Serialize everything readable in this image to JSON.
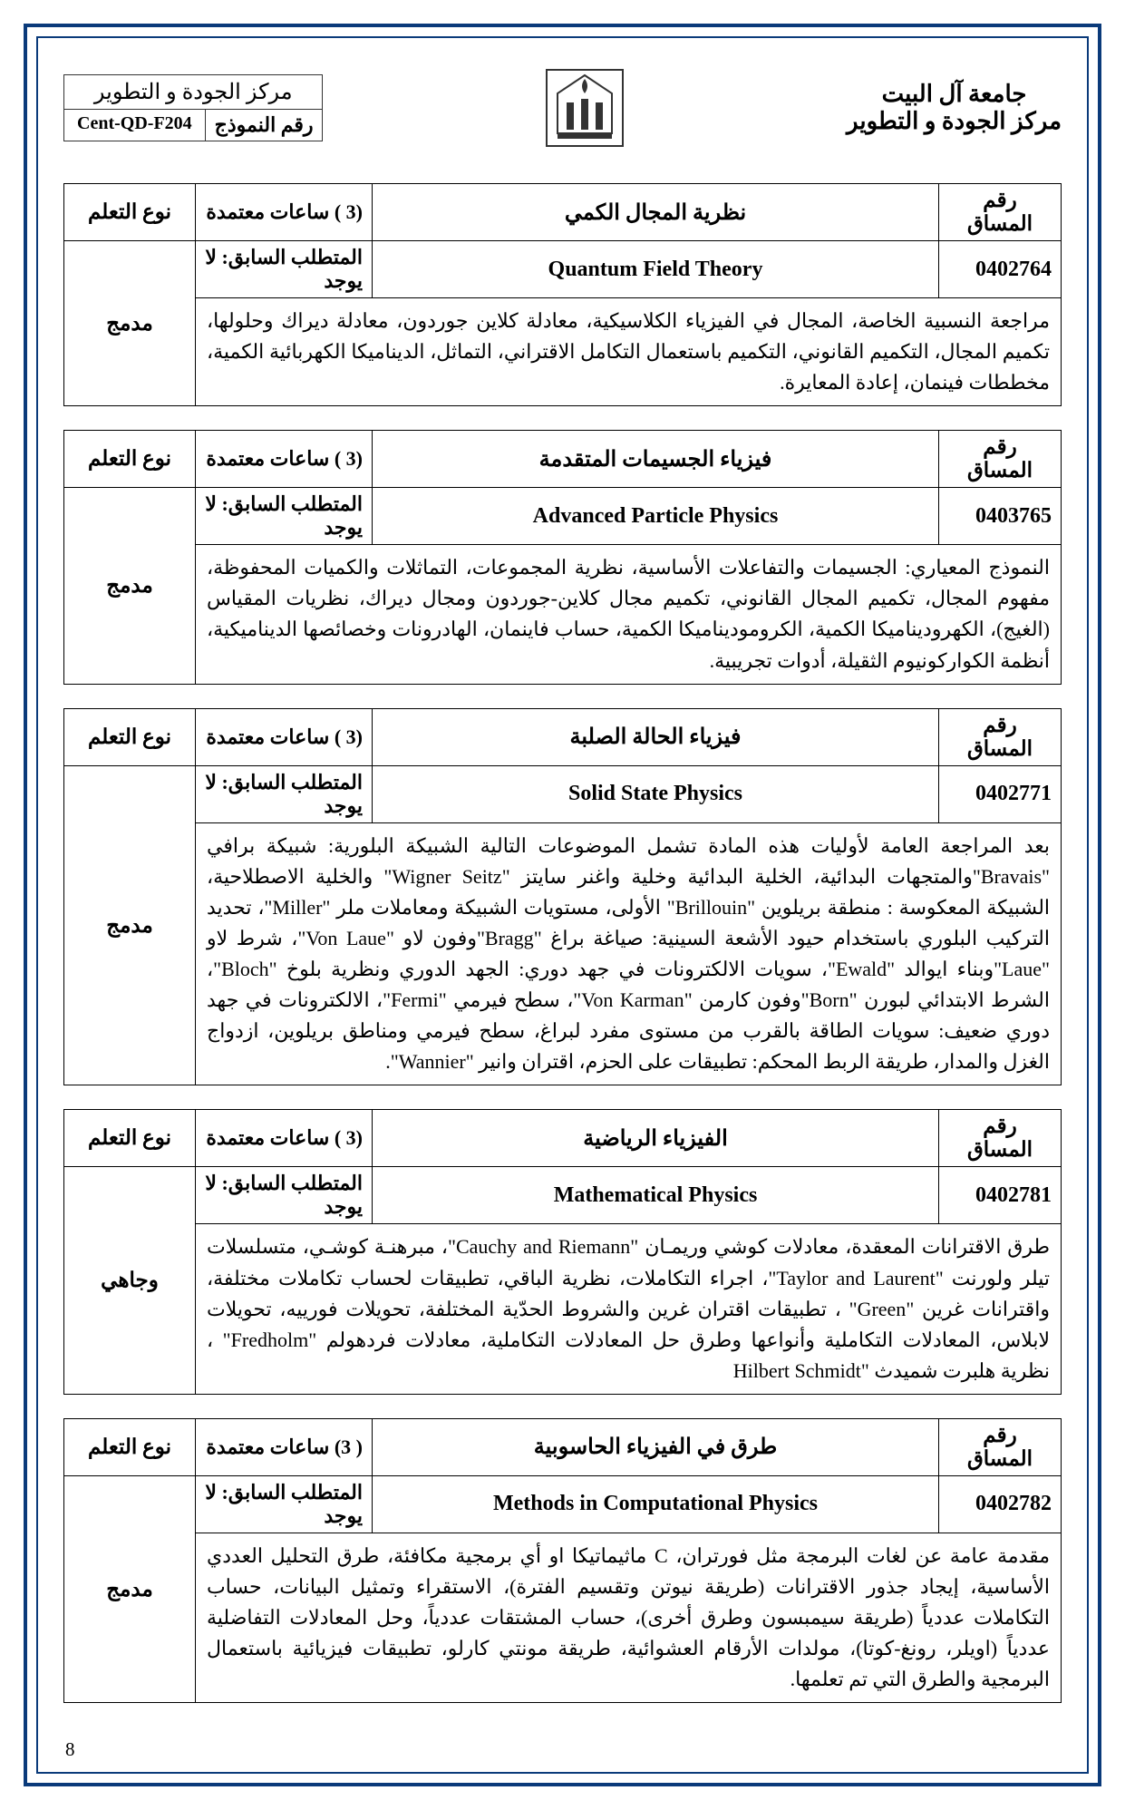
{
  "header": {
    "center_name": "مركز الجودة و التطوير",
    "form_label": "رقم النموذج",
    "form_code": "Cent-QD-F204",
    "university": "جامعة آل البيت",
    "univ_center": "مركز الجودة و التطوير"
  },
  "labels": {
    "course_no": "رقم المساق",
    "learning_type": "نوع التعلم",
    "prereq": "المتطلب السابق: لا يوجد"
  },
  "courses": [
    {
      "code": "0402764",
      "title_ar": "نظرية المجال الكمي",
      "title_en": "Quantum Field Theory",
      "hours": "(3 ) ساعات معتمدة",
      "type": "مدمج",
      "desc": "مراجعة النسبية الخاصة، المجال في الفيزياء الكلاسيكية، معادلة كلاين جوردون، معادلة ديراك وحلولها، تكميم المجال، التكميم القانوني، التكميم باستعمال التكامل الاقتراني، التماثل، الديناميكا الكهربائية الكمية، مخططات فينمان، إعادة المعايرة."
    },
    {
      "code": "0403765",
      "title_ar": "فيزياء الجسيمات المتقدمة",
      "title_en": "Advanced Particle Physics",
      "hours": "(3 ) ساعات معتمدة",
      "type": "مدمج",
      "desc": "النموذج المعياري: الجسيمات والتفاعلات الأساسية، نظرية المجموعات، التماثلات والكميات المحفوظة، مفهوم المجال، تكميم المجال القانوني، تكميم مجال كلاين-جوردون ومجال ديراك، نظريات المقياس (الغيج)، الكهروديناميكا الكمية، الكروموديناميكا الكمية، حساب فاينمان، الهادرونات وخصائصها الديناميكية، أنظمة الكواركونيوم الثقيلة، أدوات تجريبية."
    },
    {
      "code": "0402771",
      "title_ar": "فيزياء الحالة الصلبة",
      "title_en": "Solid State Physics",
      "hours": "(3 ) ساعات معتمدة",
      "type": "مدمج",
      "desc": "بعد المراجعة العامة لأوليات هذه المادة تشمل الموضوعات التالية الشبيكة البلورية: شبيكة برافي \"Bravais\"والمتجهات البدائية، الخلية البدائية وخلية واغنر سايتز \"Wigner Seitz\" والخلية الاصطلاحية، الشبيكة المعكوسة : منطقة بريلوين \"Brillouin\" الأولى، مستويات الشبيكة ومعاملات ملر \"Miller\"، تحديد التركيب البلوري باستخدام حيود الأشعة السينية: صياغة براغ \"Bragg\"وفون لاو \"Von Laue\"، شرط لاو \"Laue\"وبناء ايوالد \"Ewald\"، سويات الالكترونات في جهد دوري: الجهد الدوري ونظرية بلوخ \"Bloch\"، الشرط الابتدائي لبورن \"Born\"وفون كارمن \"Von Karman\"، سطح فيرمي \"Fermi\"، الالكترونات في جهد دوري ضعيف: سويات الطاقة بالقرب من مستوى مفرد لبراغ، سطح فيرمي ومناطق بريلوين، ازدواج الغزل والمدار، طريقة الربط المحكم: تطبيقات على الحزم، اقتران وانير \"Wannier\"."
    },
    {
      "code": "0402781",
      "title_ar": "الفيزياء الرياضية",
      "title_en": "Mathematical Physics",
      "hours": "(3 ) ساعات معتمدة",
      "type": "وجاهي",
      "desc": "طرق الاقترانات المعقدة، معادلات كوشي وريمـان \"Cauchy and Riemann\"، مبرهنـة كوشـي، متسلسلات تيلر ولورنت \"Taylor and Laurent\"، اجراء التكاملات، نظرية الباقي، تطبيقات لحساب تكاملات مختلفة، واقترانات غرين \"Green\" ، تطبيقات اقتران غرين والشروط الحدّية المختلفة، تحويلات فورييه، تحويلات لابلاس، المعادلات التكاملية وأنواعها وطرق حل المعادلات التكاملية، معادلات فردهولم \"Fredholm\" ، نظرية هلبرت شميدث \"Hilbert Schmidt"
    },
    {
      "code": "0402782",
      "title_ar": "طرق في الفيزياء الحاسوبية",
      "title_en": "Methods in Computational Physics",
      "hours": "( 3) ساعات معتمدة",
      "type": "مدمج",
      "desc": "مقدمة عامة عن لغات البرمجة مثل فورتران، C ماثيماتيكا او أي برمجية مكافئة، طرق التحليل العددي الأساسية، إيجاد جذور الاقترانات (طريقة نيوتن وتقسيم الفترة)، الاستقراء وتمثيل البيانات، حساب التكاملات عددياً (طريقة سيمبسون وطرق أخرى)، حساب المشتقات عددياً، وحل المعادلات التفاضلية عددياً (اويلر، رونغ-كوتا)، مولدات الأرقام العشوائية، طريقة مونتي كارلو، تطبيقات فيزيائية باستعمال البرمجية والطرق التي تم تعلمها."
    }
  ],
  "page_number": "8"
}
